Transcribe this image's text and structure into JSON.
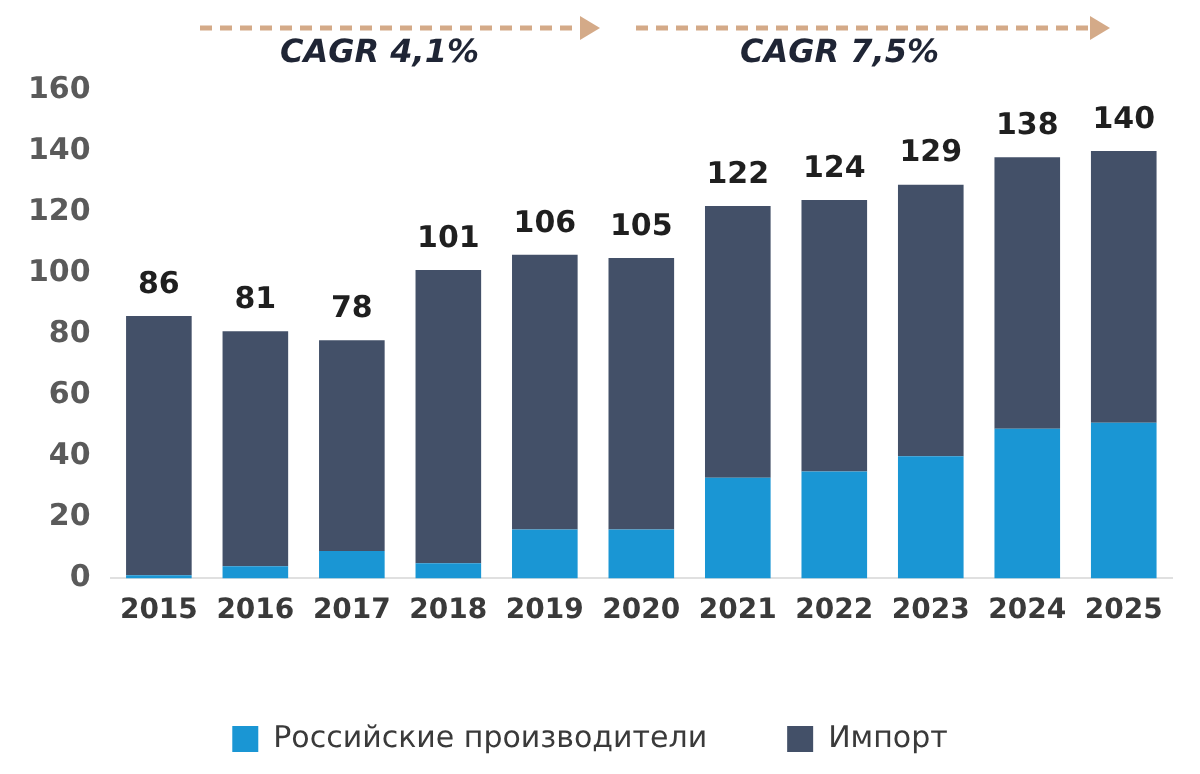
{
  "chart_data": {
    "type": "bar",
    "stacked": true,
    "categories": [
      "2015",
      "2016",
      "2017",
      "2018",
      "2019",
      "2020",
      "2021",
      "2022",
      "2023",
      "2024",
      "2025"
    ],
    "series": [
      {
        "name": "Российские производители",
        "color": "#1a96d4",
        "values": [
          1,
          4,
          9,
          5,
          16,
          16,
          33,
          35,
          40,
          49,
          51
        ]
      },
      {
        "name": "Импорт",
        "color": "#435068",
        "values": [
          85,
          77,
          69,
          96,
          90,
          89,
          89,
          89,
          89,
          89,
          89
        ]
      }
    ],
    "totals": [
      "86",
      "81",
      "78",
      "101",
      "106",
      "105",
      "122",
      "124",
      "129",
      "138",
      "140"
    ],
    "ylim": [
      0,
      160
    ],
    "yticks": [
      0,
      20,
      40,
      60,
      80,
      100,
      120,
      140,
      160
    ],
    "grid": false,
    "legend": "bottom",
    "annotations": [
      "CAGR 4,1%",
      "CAGR 7,5%"
    ]
  }
}
